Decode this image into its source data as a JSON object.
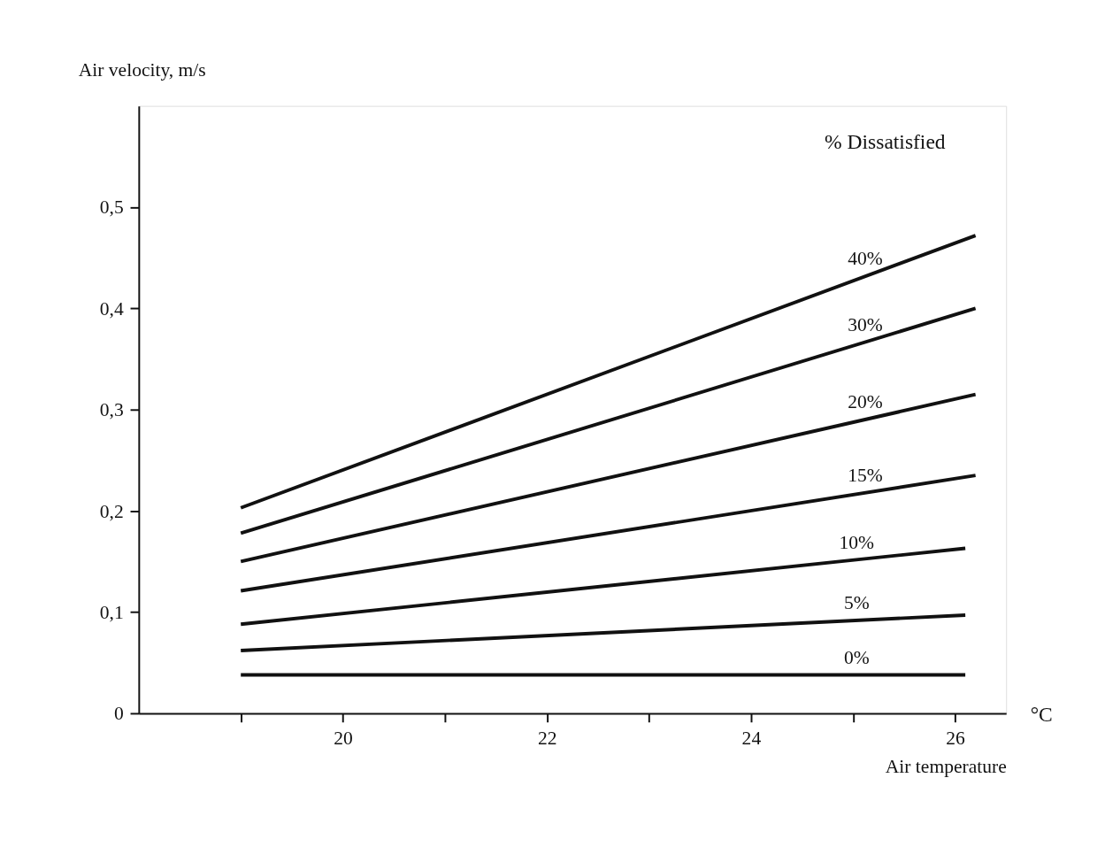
{
  "chart_data": {
    "type": "line",
    "xlabel": "Air temperature",
    "ylabel": "Air velocity, m/s",
    "annotations": [
      "% Dissatisfied",
      "°C"
    ],
    "xlim": [
      18,
      26.5
    ],
    "ylim": [
      0,
      0.6
    ],
    "xticks": [
      {
        "value": 19,
        "label": null
      },
      20,
      {
        "value": 21,
        "label": null
      },
      22,
      {
        "value": 23,
        "label": null
      },
      24,
      {
        "value": 25,
        "label": null
      },
      26
    ],
    "yticks": [
      0,
      {
        "value": 0.1,
        "label": "0,1"
      },
      {
        "value": 0.2,
        "label": "0,2"
      },
      {
        "value": 0.3,
        "label": "0,3"
      },
      {
        "value": 0.4,
        "label": "0,4"
      },
      {
        "value": 0.5,
        "label": "0,5"
      }
    ],
    "grid": false,
    "legend": false,
    "marker": "none",
    "line_style": "solid",
    "series": [
      {
        "name": "40%",
        "color": "#111111",
        "x": [
          19,
          26.2
        ],
        "values": [
          0.203,
          0.472
        ]
      },
      {
        "name": "30%",
        "color": "#111111",
        "x": [
          19,
          26.2
        ],
        "values": [
          0.178,
          0.4
        ]
      },
      {
        "name": "20%",
        "color": "#111111",
        "x": [
          19,
          26.2
        ],
        "values": [
          0.15,
          0.315
        ]
      },
      {
        "name": "15%",
        "color": "#111111",
        "x": [
          19,
          26.2
        ],
        "values": [
          0.121,
          0.235
        ]
      },
      {
        "name": "10%",
        "color": "#111111",
        "x": [
          19,
          26.1
        ],
        "values": [
          0.088,
          0.163
        ]
      },
      {
        "name": "5%",
        "color": "#111111",
        "x": [
          19,
          26.1
        ],
        "values": [
          0.062,
          0.097
        ]
      },
      {
        "name": "0%",
        "color": "#111111",
        "x": [
          19,
          26.1
        ],
        "values": [
          0.038,
          0.038
        ]
      }
    ]
  }
}
